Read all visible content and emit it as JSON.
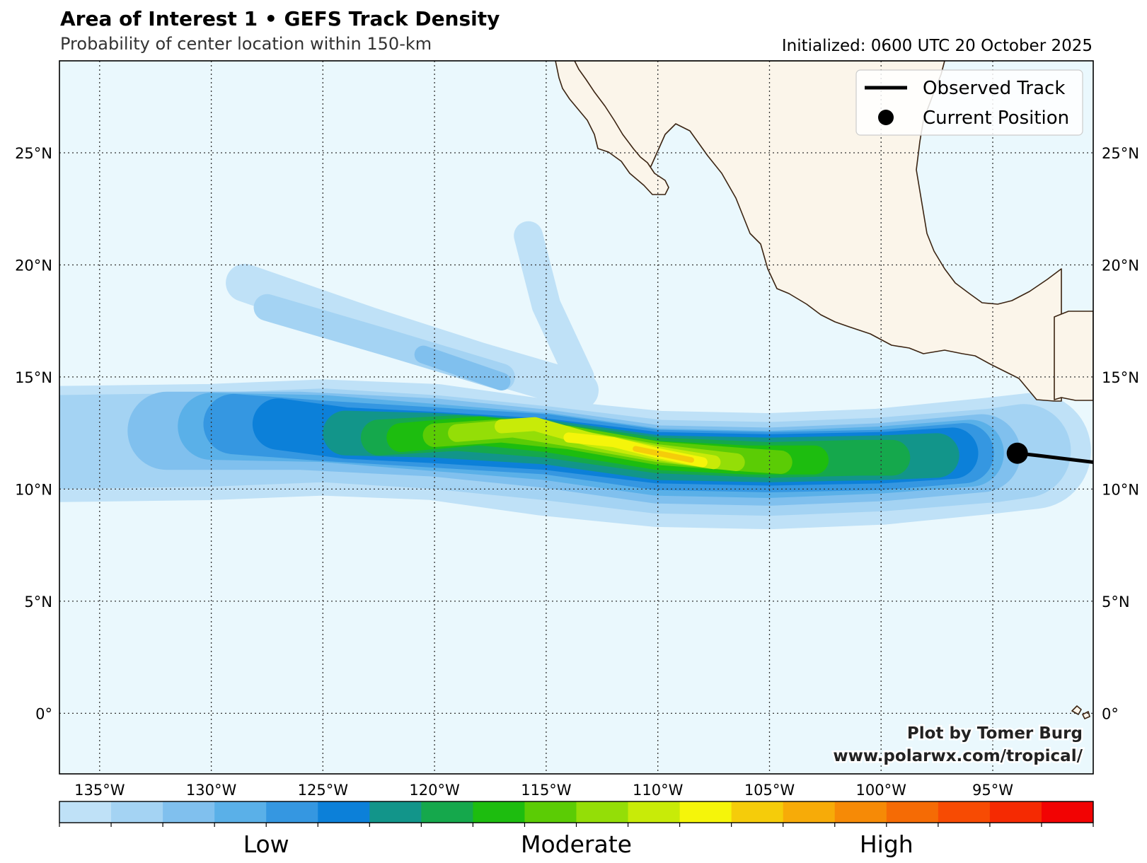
{
  "header": {
    "title": "Area of Interest 1 • GEFS Track Density",
    "subtitle": "Probability of center location within 150-km",
    "initialized": "Initialized: 0600 UTC 20 October 2025"
  },
  "map": {
    "lon_range": [
      -136.8,
      -90.5
    ],
    "lat_range": [
      -2.7,
      29.1
    ],
    "ocean_color": "#eaf8fd",
    "land_color": "#fbf5ea",
    "coast_color": "#3b2412",
    "lon_ticks": [
      {
        "value": -135,
        "label": "135°W"
      },
      {
        "value": -130,
        "label": "130°W"
      },
      {
        "value": -125,
        "label": "125°W"
      },
      {
        "value": -120,
        "label": "120°W"
      },
      {
        "value": -115,
        "label": "115°W"
      },
      {
        "value": -110,
        "label": "110°W"
      },
      {
        "value": -105,
        "label": "105°W"
      },
      {
        "value": -100,
        "label": "100°W"
      },
      {
        "value": -95,
        "label": "95°W"
      }
    ],
    "lat_ticks": [
      {
        "value": 0,
        "label": "0°"
      },
      {
        "value": 5,
        "label": "5°N"
      },
      {
        "value": 10,
        "label": "10°N"
      },
      {
        "value": 15,
        "label": "15°N"
      },
      {
        "value": 20,
        "label": "20°N"
      },
      {
        "value": 25,
        "label": "25°N"
      }
    ],
    "observed_track": [
      [
        -93.9,
        11.6
      ],
      [
        -93.0,
        11.5
      ],
      [
        -90.5,
        11.2
      ]
    ],
    "current_position": [
      -93.9,
      11.6
    ],
    "density_levels": [
      {
        "level": 1,
        "spine": [
          [
            -137.5,
            12.0
          ],
          [
            -130,
            12.1
          ],
          [
            -125,
            12.3
          ],
          [
            -120,
            12.1
          ],
          [
            -115,
            11.4
          ],
          [
            -110,
            10.9
          ],
          [
            -105,
            10.8
          ],
          [
            -100,
            11.0
          ],
          [
            -95,
            11.5
          ],
          [
            -93.2,
            11.7
          ]
        ],
        "width": 5.2
      },
      {
        "level": 2,
        "spine": [
          [
            -137,
            12.1
          ],
          [
            -130,
            12.2
          ],
          [
            -125,
            12.4
          ],
          [
            -120,
            12.1
          ],
          [
            -115,
            11.6
          ],
          [
            -110,
            11.0
          ],
          [
            -105,
            10.9
          ],
          [
            -100,
            11.1
          ],
          [
            -95,
            11.5
          ],
          [
            -93.6,
            11.7
          ]
        ],
        "width": 4.2
      },
      {
        "level": 3,
        "spine": [
          [
            -132,
            12.6
          ],
          [
            -126,
            12.6
          ],
          [
            -120,
            12.3
          ],
          [
            -115,
            11.8
          ],
          [
            -110,
            11.1
          ],
          [
            -105,
            11.0
          ],
          [
            -100,
            11.2
          ],
          [
            -95.5,
            11.6
          ]
        ],
        "width": 3.5
      },
      {
        "level": 4,
        "spine": [
          [
            -130,
            12.8
          ],
          [
            -125,
            12.7
          ],
          [
            -120,
            12.3
          ],
          [
            -115,
            11.9
          ],
          [
            -110,
            11.2
          ],
          [
            -105,
            11.1
          ],
          [
            -100,
            11.3
          ],
          [
            -96,
            11.6
          ]
        ],
        "width": 3.0
      },
      {
        "level": 5,
        "spine": [
          [
            -129,
            12.9
          ],
          [
            -125,
            12.6
          ],
          [
            -120,
            12.3
          ],
          [
            -115,
            12.0
          ],
          [
            -110,
            11.3
          ],
          [
            -105,
            11.2
          ],
          [
            -100,
            11.3
          ],
          [
            -96.3,
            11.6
          ]
        ],
        "width": 2.7
      },
      {
        "level": 6,
        "spine": [
          [
            -127,
            12.9
          ],
          [
            -124,
            12.5
          ],
          [
            -120,
            12.3
          ],
          [
            -115,
            12.0
          ],
          [
            -110,
            11.4
          ],
          [
            -105,
            11.3
          ],
          [
            -100,
            11.4
          ],
          [
            -96.8,
            11.6
          ]
        ],
        "width": 2.3
      },
      {
        "level": 7,
        "spine": [
          [
            -124,
            12.5
          ],
          [
            -120,
            12.4
          ],
          [
            -115,
            12.1
          ],
          [
            -110,
            11.4
          ],
          [
            -105,
            11.3
          ],
          [
            -100,
            11.4
          ],
          [
            -97.5,
            11.5
          ]
        ],
        "width": 2.0
      },
      {
        "level": 8,
        "spine": [
          [
            -122.5,
            12.3
          ],
          [
            -119,
            12.5
          ],
          [
            -115,
            12.2
          ],
          [
            -110,
            11.5
          ],
          [
            -105,
            11.3
          ],
          [
            -101,
            11.4
          ],
          [
            -99.5,
            11.4
          ]
        ],
        "width": 1.6
      },
      {
        "level": 9,
        "spine": [
          [
            -121.5,
            12.3
          ],
          [
            -118,
            12.6
          ],
          [
            -115,
            12.3
          ],
          [
            -110,
            11.5
          ],
          [
            -106,
            11.3
          ],
          [
            -103,
            11.3
          ]
        ],
        "width": 1.3
      },
      {
        "level": 10,
        "spine": [
          [
            -120,
            12.4
          ],
          [
            -117,
            12.6
          ],
          [
            -114,
            12.3
          ],
          [
            -110,
            11.6
          ],
          [
            -106,
            11.3
          ],
          [
            -104.5,
            11.2
          ]
        ],
        "width": 1.05
      },
      {
        "level": 11,
        "spine": [
          [
            -119,
            12.5
          ],
          [
            -116.5,
            12.7
          ],
          [
            -114,
            12.3
          ],
          [
            -110,
            11.6
          ],
          [
            -106.5,
            11.2
          ]
        ],
        "width": 0.8
      },
      {
        "level": 12,
        "spine": [
          [
            -117,
            12.8
          ],
          [
            -115.5,
            12.9
          ],
          [
            -113,
            12.2
          ],
          [
            -110,
            11.6
          ],
          [
            -107.5,
            11.2
          ]
        ],
        "width": 0.62
      },
      {
        "level": 13,
        "spine": [
          [
            -114,
            12.3
          ],
          [
            -112,
            12.1
          ],
          [
            -110,
            11.6
          ],
          [
            -108,
            11.2
          ]
        ],
        "width": 0.45
      },
      {
        "level": 14,
        "spine": [
          [
            -111,
            11.8
          ],
          [
            -109.5,
            11.5
          ],
          [
            -108.5,
            11.3
          ]
        ],
        "width": 0.25
      }
    ],
    "density_branches": [
      {
        "level": 1,
        "spine": [
          [
            -128.5,
            19.2
          ],
          [
            -123,
            17.3
          ],
          [
            -118,
            15.7
          ],
          [
            -113.5,
            14.4
          ]
        ],
        "width": 1.7
      },
      {
        "level": 1,
        "spine": [
          [
            -115.8,
            21.3
          ],
          [
            -115,
            18.2
          ],
          [
            -113.5,
            15.0
          ]
        ],
        "width": 1.3
      },
      {
        "level": 2,
        "spine": [
          [
            -127.5,
            18.1
          ],
          [
            -122,
            16.5
          ],
          [
            -117,
            15.0
          ]
        ],
        "width": 1.2
      },
      {
        "level": 3,
        "spine": [
          [
            -120.5,
            16.0
          ],
          [
            -117,
            14.8
          ]
        ],
        "width": 0.8
      }
    ]
  },
  "legend": {
    "items": [
      {
        "label": "Observed Track",
        "symbol": "line"
      },
      {
        "label": "Current Position",
        "symbol": "dot"
      }
    ]
  },
  "credits": {
    "line1": "Plot by Tomer Burg",
    "line2": "www.polarwx.com/tropical/"
  },
  "colorbar": {
    "colors": [
      "#bfe1f7",
      "#a4d3f3",
      "#80c0ee",
      "#5ab0e8",
      "#3597e1",
      "#0c80d9",
      "#12958a",
      "#15a84c",
      "#1dbd0f",
      "#5bcc05",
      "#94de07",
      "#c8eb08",
      "#f5f50a",
      "#f5cc0a",
      "#f7ab08",
      "#f68a06",
      "#f56b05",
      "#f74b03",
      "#f52a02",
      "#f20303"
    ],
    "labels": [
      {
        "text": "Low",
        "position": 0.2
      },
      {
        "text": "Moderate",
        "position": 0.5
      },
      {
        "text": "High",
        "position": 0.8
      }
    ]
  }
}
